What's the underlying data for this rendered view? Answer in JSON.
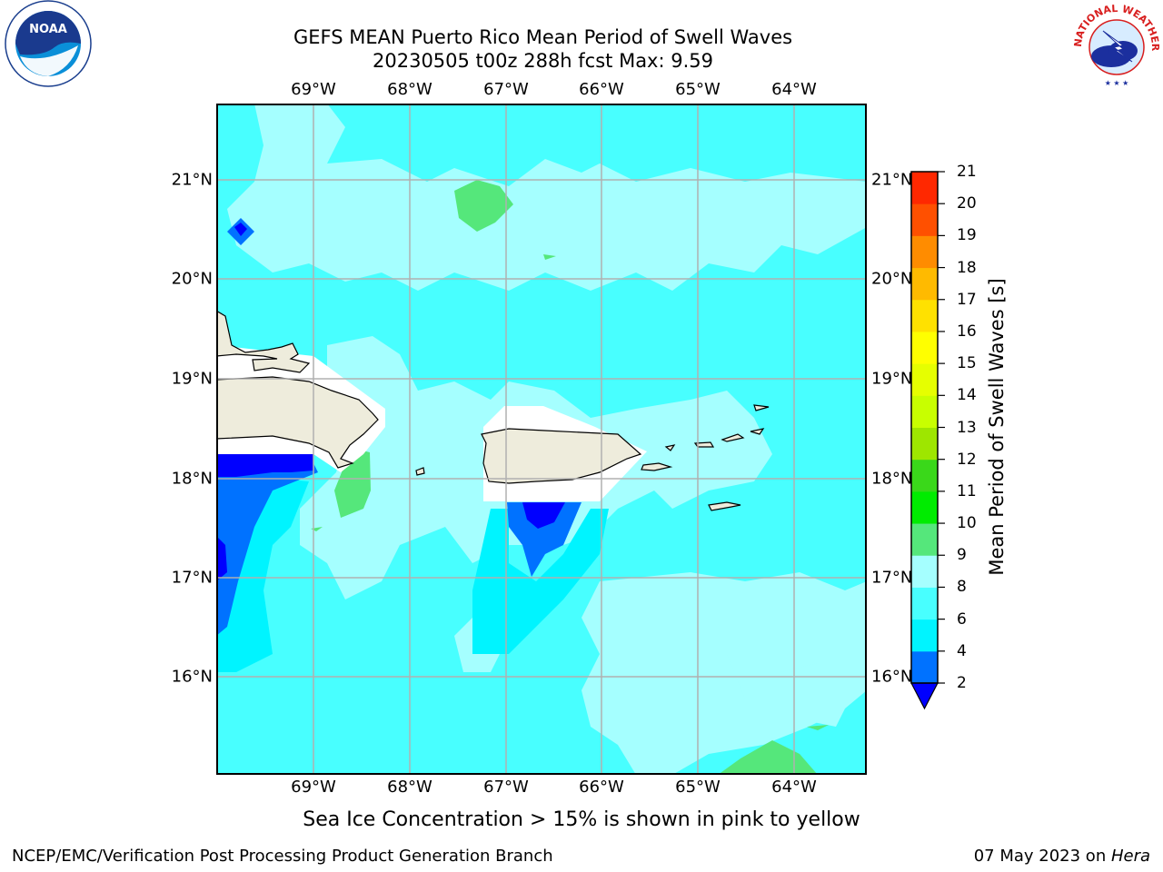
{
  "header": {
    "title_line1": "GEFS MEAN Puerto Rico Mean Period of Swell Waves",
    "title_line2": "20230505 t00z 288h fcst   Max: 9.59"
  },
  "logos": {
    "left": {
      "name": "noaa-logo",
      "text": "NOAA",
      "ring_text": "NATIONAL OCEANIC AND ATMOSPHERIC ADMINISTRATION · U.S. DEPARTMENT OF COMMERCE"
    },
    "right": {
      "name": "nws-logo",
      "ring_text": "NATIONAL WEATHER SERVICE"
    }
  },
  "map": {
    "lon_labels": [
      "69°W",
      "68°W",
      "67°W",
      "66°W",
      "65°W",
      "64°W"
    ],
    "lat_labels": [
      "21°N",
      "20°N",
      "19°N",
      "18°N",
      "17°N",
      "16°N"
    ],
    "extent": {
      "lon_min": -70.0,
      "lon_max": -63.25,
      "lat_min": 15.0,
      "lat_max": 21.75
    },
    "colors": {
      "land": "#eeecdc",
      "background": "#48ffff",
      "grid": "#b0b0b0"
    }
  },
  "colorbar": {
    "title": "Mean Period of Swell Waves [s]",
    "tick_labels": [
      "2",
      "4",
      "6",
      "8",
      "9",
      "10",
      "11",
      "12",
      "13",
      "14",
      "15",
      "16",
      "17",
      "18",
      "19",
      "20",
      "21"
    ],
    "colors": [
      "#0072ff",
      "#00f4ff",
      "#48ffff",
      "#a5ffff",
      "#55e77b",
      "#00ec00",
      "#3ad81a",
      "#9ee600",
      "#c8ff00",
      "#e6ff00",
      "#ffff00",
      "#ffe100",
      "#ffba00",
      "#ff8c00",
      "#ff5000",
      "#ff2800",
      "#ff0000"
    ],
    "under_color": "#0000ff"
  },
  "note": "Sea Ice Concentration > 15% is shown in pink to yellow",
  "footer": {
    "left": "NCEP/EMC/Verification Post Processing Product Generation Branch",
    "right_prefix": "07 May 2023 on ",
    "right_host": "Hera"
  }
}
